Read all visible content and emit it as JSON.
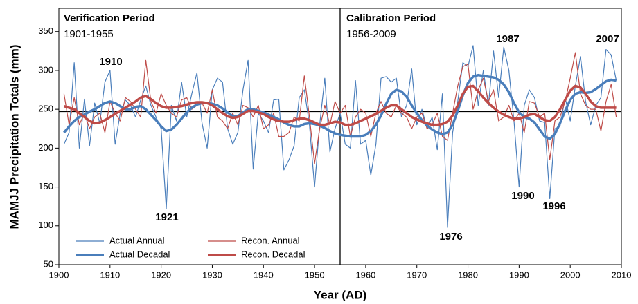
{
  "chart_data": {
    "type": "line",
    "y_label": "MAMJJ Precipitation Totals (mm)",
    "x_label": "Year (AD)",
    "periods": [
      {
        "name": "Verification Period",
        "range": "1901-1955"
      },
      {
        "name": "Calibration Period",
        "range": "1956-2009"
      }
    ],
    "divider_x": 1955,
    "reference_line": 247,
    "annotations": [
      "1910",
      "1921",
      "1976",
      "1987",
      "1990",
      "1996",
      "2007"
    ],
    "xlim": [
      1900,
      2010
    ],
    "xticks": [
      1900,
      1910,
      1920,
      1930,
      1940,
      1950,
      1960,
      1970,
      1980,
      1990,
      2000,
      2010
    ],
    "ylim": [
      50,
      380
    ],
    "yticks": [
      50,
      100,
      150,
      200,
      250,
      300,
      350
    ],
    "x": [
      1901,
      1902,
      1903,
      1904,
      1905,
      1906,
      1907,
      1908,
      1909,
      1910,
      1911,
      1912,
      1913,
      1914,
      1915,
      1916,
      1917,
      1918,
      1919,
      1920,
      1921,
      1922,
      1923,
      1924,
      1925,
      1926,
      1927,
      1928,
      1929,
      1930,
      1931,
      1932,
      1933,
      1934,
      1935,
      1936,
      1937,
      1938,
      1939,
      1940,
      1941,
      1942,
      1943,
      1944,
      1945,
      1946,
      1947,
      1948,
      1949,
      1950,
      1951,
      1952,
      1953,
      1954,
      1955,
      1956,
      1957,
      1958,
      1959,
      1960,
      1961,
      1962,
      1963,
      1964,
      1965,
      1966,
      1967,
      1968,
      1969,
      1970,
      1971,
      1972,
      1973,
      1974,
      1975,
      1976,
      1977,
      1978,
      1979,
      1980,
      1981,
      1982,
      1983,
      1984,
      1985,
      1986,
      1987,
      1988,
      1989,
      1990,
      1991,
      1992,
      1993,
      1994,
      1995,
      1996,
      1997,
      1998,
      1999,
      2000,
      2001,
      2002,
      2003,
      2004,
      2005,
      2006,
      2007,
      2008,
      2009
    ],
    "series": [
      {
        "name": "Actual Annual",
        "color": "#4a7ebb",
        "width": 1.2,
        "values": [
          205,
          220,
          310,
          200,
          263,
          203,
          258,
          232,
          285,
          300,
          205,
          245,
          262,
          255,
          240,
          262,
          280,
          255,
          240,
          225,
          122,
          255,
          235,
          285,
          240,
          270,
          297,
          232,
          200,
          275,
          290,
          285,
          225,
          205,
          220,
          275,
          313,
          173,
          245,
          235,
          220,
          262,
          263,
          172,
          185,
          203,
          265,
          275,
          230,
          150,
          230,
          290,
          195,
          225,
          245,
          205,
          200,
          287,
          205,
          210,
          165,
          205,
          290,
          292,
          285,
          290,
          240,
          255,
          302,
          230,
          250,
          225,
          240,
          198,
          270,
          98,
          220,
          260,
          310,
          305,
          332,
          255,
          300,
          255,
          325,
          265,
          330,
          300,
          235,
          150,
          255,
          275,
          265,
          235,
          233,
          135,
          225,
          228,
          265,
          235,
          280,
          318,
          260,
          230,
          255,
          265,
          327,
          320,
          287
        ]
      },
      {
        "name": "Recon. Annual",
        "color": "#be4b48",
        "width": 1.2,
        "values": [
          270,
          230,
          265,
          230,
          245,
          225,
          240,
          245,
          220,
          260,
          245,
          235,
          265,
          260,
          250,
          240,
          313,
          260,
          245,
          270,
          255,
          245,
          240,
          262,
          265,
          250,
          255,
          258,
          245,
          275,
          240,
          235,
          225,
          245,
          230,
          255,
          252,
          240,
          255,
          225,
          230,
          245,
          215,
          215,
          220,
          240,
          235,
          293,
          240,
          180,
          225,
          255,
          230,
          260,
          245,
          255,
          215,
          240,
          250,
          245,
          215,
          245,
          260,
          245,
          240,
          255,
          245,
          240,
          225,
          240,
          245,
          225,
          230,
          245,
          215,
          210,
          245,
          280,
          305,
          308,
          250,
          275,
          290,
          260,
          275,
          235,
          240,
          255,
          235,
          245,
          220,
          260,
          258,
          240,
          245,
          185,
          235,
          240,
          260,
          290,
          323,
          270,
          255,
          250,
          250,
          222,
          260,
          282,
          240
        ]
      },
      {
        "name": "Actual Decadal",
        "color": "#4a7ebb",
        "width": 3.5,
        "values": [
          220,
          228,
          235,
          240,
          243,
          247,
          250,
          254,
          258,
          260,
          258,
          254,
          250,
          250,
          253,
          254,
          250,
          243,
          236,
          228,
          222,
          224,
          230,
          238,
          246,
          252,
          256,
          258,
          258,
          257,
          255,
          251,
          246,
          241,
          241,
          246,
          250,
          250,
          248,
          246,
          243,
          240,
          237,
          233,
          230,
          228,
          228,
          231,
          232,
          231,
          229,
          226,
          222,
          219,
          217,
          216,
          215,
          215,
          215,
          217,
          222,
          230,
          242,
          257,
          270,
          275,
          273,
          266,
          255,
          245,
          236,
          229,
          224,
          220,
          218,
          220,
          230,
          248,
          268,
          284,
          292,
          294,
          293,
          292,
          291,
          288,
          282,
          272,
          258,
          246,
          240,
          238,
          233,
          224,
          215,
          212,
          218,
          232,
          248,
          262,
          270,
          272,
          271,
          272,
          276,
          281,
          286,
          288,
          287
        ]
      },
      {
        "name": "Recon. Decadal",
        "color": "#be4b48",
        "width": 3.5,
        "values": [
          254,
          252,
          250,
          245,
          240,
          235,
          232,
          233,
          236,
          240,
          244,
          248,
          252,
          256,
          260,
          265,
          267,
          263,
          258,
          254,
          252,
          252,
          253,
          254,
          256,
          258,
          259,
          259,
          258,
          255,
          250,
          245,
          241,
          239,
          240,
          244,
          248,
          248,
          246,
          244,
          240,
          237,
          235,
          234,
          234,
          236,
          238,
          238,
          236,
          233,
          230,
          230,
          232,
          234,
          233,
          230,
          230,
          232,
          235,
          238,
          241,
          244,
          248,
          252,
          255,
          255,
          250,
          245,
          240,
          237,
          234,
          232,
          230,
          230,
          231,
          234,
          242,
          255,
          270,
          279,
          280,
          273,
          265,
          258,
          252,
          247,
          243,
          240,
          238,
          238,
          240,
          243,
          244,
          240,
          236,
          235,
          240,
          250,
          262,
          274,
          280,
          278,
          270,
          260,
          254,
          252,
          252,
          252,
          252
        ]
      }
    ]
  }
}
